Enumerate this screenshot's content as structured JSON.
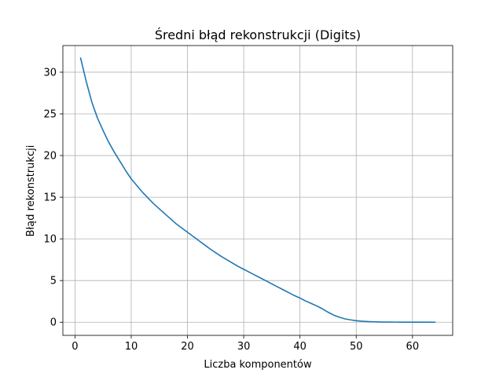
{
  "chart_data": {
    "type": "line",
    "title": "Średni błąd rekonstrukcji (Digits)",
    "xlabel": "Liczba komponentów",
    "ylabel": "Błąd rekonstrukcji",
    "xlim": [
      -2.15,
      67.15
    ],
    "ylim": [
      -1.58,
      33.2
    ],
    "xticks": [
      0,
      10,
      20,
      30,
      40,
      50,
      60
    ],
    "yticks": [
      0,
      5,
      10,
      15,
      20,
      25,
      30
    ],
    "grid": true,
    "series": [
      {
        "color": "#1f77b4",
        "x": [
          1,
          2,
          3,
          4,
          5,
          6,
          7,
          8,
          9,
          10,
          11,
          12,
          13,
          14,
          15,
          16,
          17,
          18,
          19,
          20,
          21,
          22,
          23,
          24,
          25,
          26,
          27,
          28,
          29,
          30,
          31,
          32,
          33,
          34,
          35,
          36,
          37,
          38,
          39,
          40,
          41,
          42,
          43,
          44,
          45,
          46,
          47,
          48,
          49,
          50,
          51,
          52,
          53,
          54,
          55,
          56,
          57,
          58,
          59,
          60,
          61,
          62,
          63,
          64
        ],
        "y": [
          31.7,
          28.9,
          26.4,
          24.5,
          23.0,
          21.6,
          20.4,
          19.3,
          18.2,
          17.2,
          16.4,
          15.6,
          14.9,
          14.2,
          13.6,
          13.0,
          12.4,
          11.8,
          11.3,
          10.8,
          10.3,
          9.8,
          9.3,
          8.8,
          8.35,
          7.9,
          7.5,
          7.1,
          6.7,
          6.35,
          6.0,
          5.65,
          5.3,
          4.95,
          4.6,
          4.25,
          3.9,
          3.55,
          3.2,
          2.9,
          2.55,
          2.25,
          1.95,
          1.6,
          1.2,
          0.85,
          0.6,
          0.4,
          0.28,
          0.18,
          0.12,
          0.08,
          0.05,
          0.03,
          0.02,
          0.015,
          0.01,
          0.008,
          0.006,
          0.004,
          0.003,
          0.002,
          0.001,
          0.0
        ]
      }
    ]
  }
}
